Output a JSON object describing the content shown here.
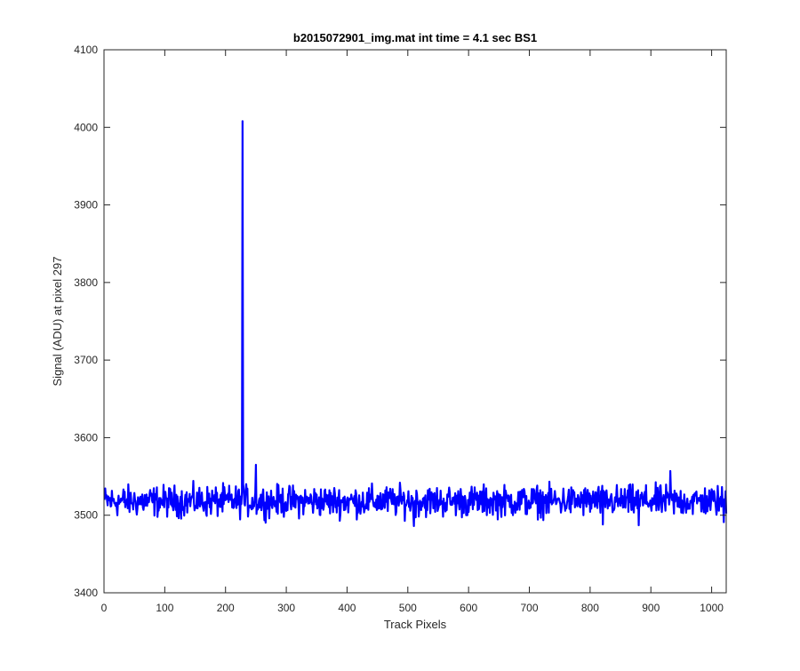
{
  "chart_data": {
    "type": "line",
    "title": "b2015072901_img.mat int time = 4.1 sec   BS1",
    "xlabel": "Track Pixels",
    "ylabel": "Signal (ADU) at pixel 297",
    "xlim": [
      0,
      1024
    ],
    "ylim": [
      3400,
      4100
    ],
    "xticks": [
      0,
      100,
      200,
      300,
      400,
      500,
      600,
      700,
      800,
      900,
      1000
    ],
    "yticks": [
      3400,
      3500,
      3600,
      3700,
      3800,
      3900,
      4000,
      4100
    ],
    "grid": false,
    "legend": "none",
    "series": [
      {
        "color": "#0000ff",
        "baseline": 3518,
        "noise_amplitude": 13,
        "x_range": [
          1,
          1024
        ],
        "spikes": [
          {
            "x": 227,
            "y": 3530
          },
          {
            "x": 228,
            "y": 4008
          },
          {
            "x": 229,
            "y": 3540
          },
          {
            "x": 250,
            "y": 3565
          },
          {
            "x": 510,
            "y": 3486
          },
          {
            "x": 821,
            "y": 3488
          },
          {
            "x": 880,
            "y": 3487
          },
          {
            "x": 932,
            "y": 3557
          },
          {
            "x": 1020,
            "y": 3491
          }
        ]
      }
    ]
  }
}
